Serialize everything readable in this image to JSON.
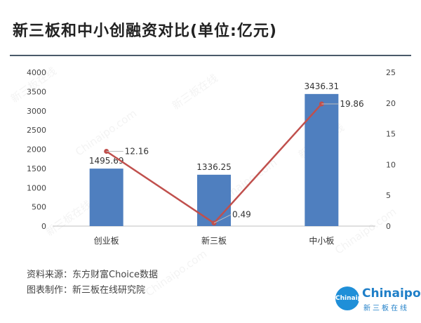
{
  "title": "新三板和中小创融资对比(单位:亿元)",
  "footer": {
    "source": "资料来源：东方财富Choice数据",
    "maker": "图表制作：新三板在线研究院"
  },
  "logo": {
    "circle_text": "Chinaipo",
    "main_text": "Chinaipo",
    "sub_text": "新三板在线"
  },
  "watermark": {
    "latin": "Chinaipo.com",
    "cn": "新三板在线"
  },
  "colors": {
    "bar": "#4f7fbf",
    "line": "#c0504d",
    "rule": "#4a5a6a",
    "logo": "#1f8fd8"
  },
  "chart_data": {
    "type": "bar",
    "categories": [
      "创业板",
      "新三板",
      "中小板"
    ],
    "series": [
      {
        "type": "bar",
        "axis": "left",
        "values": [
          1495.69,
          1336.25,
          3436.31
        ],
        "data_labels": [
          "1495.69",
          "1336.25",
          "3436.31"
        ]
      },
      {
        "type": "line",
        "axis": "right",
        "values": [
          12.16,
          0.49,
          19.86
        ],
        "data_labels": [
          "12.16",
          "0.49",
          "19.86"
        ]
      }
    ],
    "y_left": {
      "min": 0,
      "max": 4000,
      "ticks": [
        0,
        500,
        1000,
        1500,
        2000,
        2500,
        3000,
        3500,
        4000
      ]
    },
    "y_right": {
      "min": 0,
      "max": 25,
      "ticks": [
        0,
        5,
        10,
        15,
        20,
        25
      ]
    },
    "grid": false,
    "legend": "none"
  }
}
